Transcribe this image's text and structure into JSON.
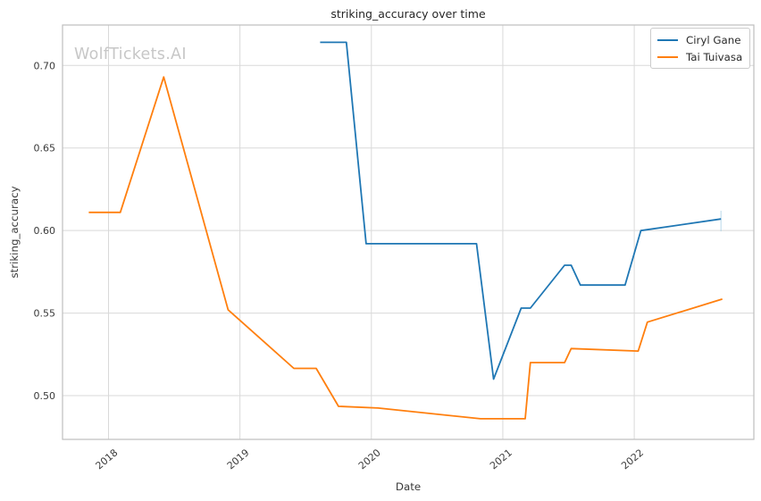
{
  "watermark": {
    "text": "WolfTickets.AI"
  },
  "chart_data": {
    "type": "line",
    "title": "striking_accuracy over time",
    "xlabel": "Date",
    "ylabel": "striking_accuracy",
    "grid": true,
    "legend_position": "upper right",
    "xlim": [
      2017.65,
      2022.91
    ],
    "ylim": [
      0.4735,
      0.7245
    ],
    "x_ticks": [
      {
        "value": 2018,
        "label": "2018"
      },
      {
        "value": 2019,
        "label": "2019"
      },
      {
        "value": 2020,
        "label": "2020"
      },
      {
        "value": 2021,
        "label": "2021"
      },
      {
        "value": 2022,
        "label": "2022"
      }
    ],
    "y_ticks": [
      {
        "value": 0.5,
        "label": "0.50"
      },
      {
        "value": 0.55,
        "label": "0.55"
      },
      {
        "value": 0.6,
        "label": "0.60"
      },
      {
        "value": 0.65,
        "label": "0.65"
      },
      {
        "value": 0.7,
        "label": "0.70"
      }
    ],
    "series": [
      {
        "name": "Ciryl Gane",
        "color": "#1f77b4",
        "points": [
          [
            2019.61,
            0.714
          ],
          [
            2019.81,
            0.714
          ],
          [
            2019.96,
            0.592
          ],
          [
            2020.8,
            0.592
          ],
          [
            2020.93,
            0.51
          ],
          [
            2021.14,
            0.553
          ],
          [
            2021.21,
            0.553
          ],
          [
            2021.47,
            0.579
          ],
          [
            2021.52,
            0.579
          ],
          [
            2021.59,
            0.567
          ],
          [
            2021.93,
            0.567
          ],
          [
            2022.05,
            0.6
          ],
          [
            2022.66,
            0.607
          ]
        ]
      },
      {
        "name": "Tai Tuivasa",
        "color": "#ff7f0e",
        "points": [
          [
            2017.85,
            0.611
          ],
          [
            2018.09,
            0.611
          ],
          [
            2018.42,
            0.693
          ],
          [
            2018.91,
            0.552
          ],
          [
            2019.41,
            0.5165
          ],
          [
            2019.58,
            0.5165
          ],
          [
            2019.75,
            0.4935
          ],
          [
            2020.05,
            0.4925
          ],
          [
            2020.83,
            0.486
          ],
          [
            2021.17,
            0.486
          ],
          [
            2021.21,
            0.52
          ],
          [
            2021.47,
            0.52
          ],
          [
            2021.52,
            0.5285
          ],
          [
            2022.03,
            0.527
          ],
          [
            2022.1,
            0.5445
          ],
          [
            2022.67,
            0.5585
          ]
        ]
      }
    ],
    "end_marker": {
      "x": 2022.66,
      "y1": 0.5995,
      "y2": 0.612,
      "color": "#9ec9e2"
    }
  }
}
